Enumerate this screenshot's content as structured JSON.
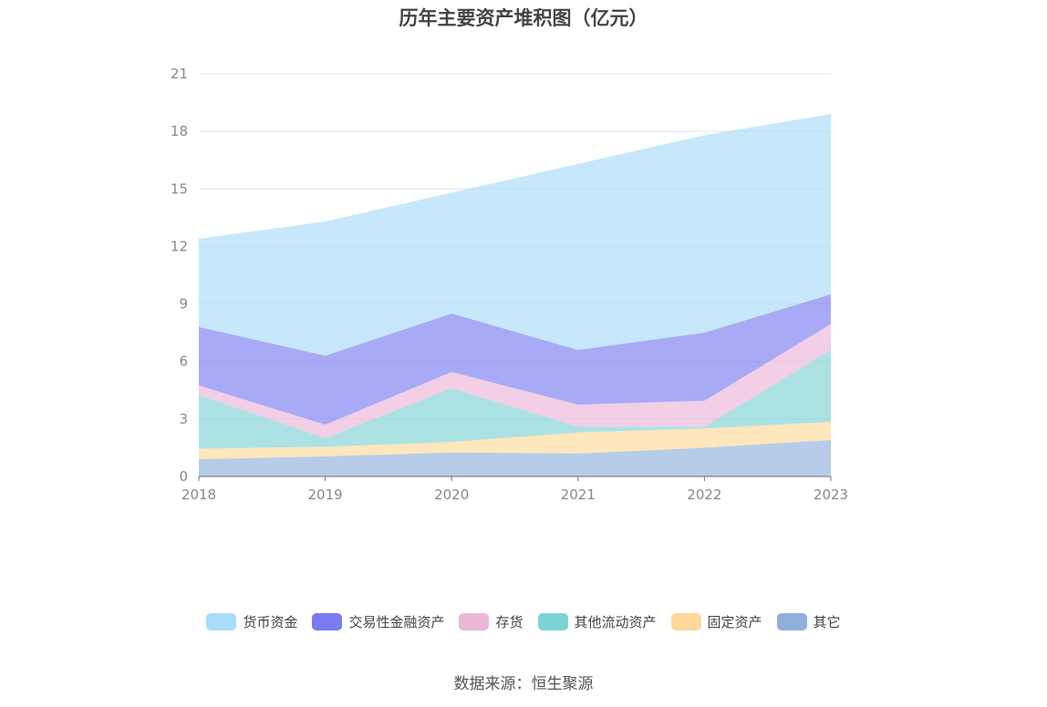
{
  "chart_data": {
    "type": "area",
    "stacked": true,
    "title": "历年主要资产堆积图（亿元）",
    "xlabel": "",
    "ylabel": "",
    "categories": [
      "2018",
      "2019",
      "2020",
      "2021",
      "2022",
      "2023"
    ],
    "ylim": [
      0,
      21
    ],
    "yticks": [
      0,
      3,
      6,
      9,
      12,
      15,
      18,
      21
    ],
    "grid": true,
    "legend_position": "bottom",
    "series": [
      {
        "name": "其它",
        "color": "#8fb0dc",
        "values": [
          0.9,
          1.05,
          1.25,
          1.2,
          1.5,
          1.9
        ]
      },
      {
        "name": "固定资产",
        "color": "#fdd89a",
        "values": [
          0.55,
          0.5,
          0.55,
          1.1,
          1.0,
          0.95
        ]
      },
      {
        "name": "其他流动资产",
        "color": "#7fd3d5",
        "values": [
          2.8,
          0.45,
          2.8,
          0.3,
          0.1,
          3.75
        ]
      },
      {
        "name": "存货",
        "color": "#ebb6d8",
        "values": [
          0.5,
          0.7,
          0.85,
          1.15,
          1.35,
          1.35
        ]
      },
      {
        "name": "交易性金融资产",
        "color": "#7b7cf1",
        "values": [
          3.05,
          3.6,
          3.05,
          2.85,
          3.55,
          1.55
        ]
      },
      {
        "name": "货币资金",
        "color": "#a8dcf8",
        "values": [
          4.6,
          7.0,
          6.3,
          9.7,
          10.3,
          9.4
        ]
      }
    ]
  },
  "legend_order": [
    "货币资金",
    "交易性金融资产",
    "存货",
    "其他流动资产",
    "固定资产",
    "其它"
  ],
  "source": "数据来源：恒生聚源"
}
